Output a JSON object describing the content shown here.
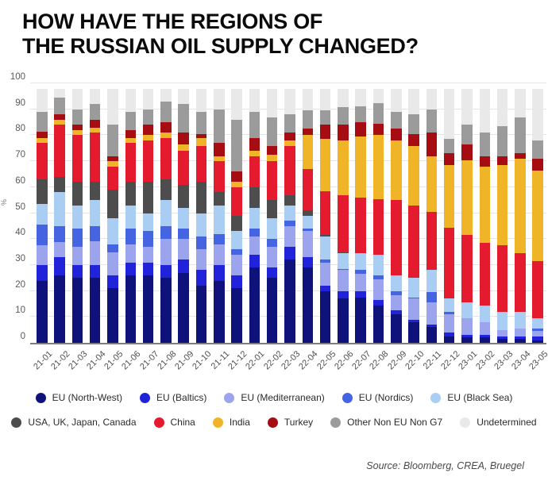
{
  "title": {
    "line1": "HOW HAVE THE REGIONS OF",
    "line2": "THE RUSSIAN OIL SUPPLY CHANGED?"
  },
  "source": "Source: Bloomberg, CREA, Bruegel",
  "chart_data": {
    "type": "bar",
    "stacked": true,
    "title": "HOW HAVE THE REGIONS OF THE RUSSIAN OIL SUPPLY CHANGED?",
    "xlabel": "",
    "ylabel": "%",
    "ylim": [
      0,
      100
    ],
    "yticks": [
      0,
      10,
      20,
      30,
      40,
      50,
      60,
      70,
      80,
      90,
      100
    ],
    "grid": true,
    "legend_position": "bottom",
    "categories": [
      "21-01",
      "21-02",
      "21-03",
      "21-04",
      "21-05",
      "21-06",
      "21-07",
      "21-08",
      "21-09",
      "21-10",
      "21-11",
      "21-12",
      "22-01",
      "22-02",
      "22-03",
      "22-04",
      "22-05",
      "22-06",
      "22-07",
      "22-08",
      "22-09",
      "22-10",
      "22-11",
      "22-12",
      "23-01",
      "23-02",
      "23-03",
      "23-04",
      "23-05"
    ],
    "series": [
      {
        "name": "EU (North-West)",
        "color": "#10127c",
        "values": [
          24,
          26,
          25,
          25,
          21,
          26,
          26,
          25,
          27,
          22,
          24,
          21,
          29,
          25,
          32,
          29,
          20,
          17,
          17.5,
          14.5,
          11,
          8,
          6,
          2.5,
          2,
          2,
          1.5,
          1.5,
          1
        ]
      },
      {
        "name": "EU (Baltics)",
        "color": "#2023d9",
        "values": [
          6,
          7,
          5,
          5,
          5,
          5,
          5,
          5,
          5,
          6,
          6,
          5,
          5,
          4,
          5,
          4,
          2,
          3,
          2.5,
          2,
          1.5,
          1,
          1,
          1.5,
          1,
          1,
          1,
          1,
          1.5
        ]
      },
      {
        "name": "EU (Mediterranean)",
        "color": "#9ca4ee",
        "values": [
          7.5,
          6,
          7,
          9,
          9,
          7,
          6,
          10,
          8,
          8,
          8,
          8,
          7,
          8,
          8,
          10,
          9,
          8,
          6.5,
          8,
          6,
          8,
          8.5,
          7,
          6.5,
          5,
          2.5,
          3,
          2
        ]
      },
      {
        "name": "EU (Nordics)",
        "color": "#4464e1",
        "values": [
          8,
          6,
          7,
          6,
          3,
          6,
          6,
          5,
          4,
          5,
          4,
          2,
          3,
          3,
          2,
          1,
          1,
          0.5,
          1.5,
          1.5,
          1.5,
          0.5,
          4,
          1,
          0,
          0,
          0,
          0,
          1
        ]
      },
      {
        "name": "EU (Black Sea)",
        "color": "#aacdf3",
        "values": [
          8,
          13,
          9,
          10,
          10,
          9,
          7,
          10,
          8,
          9,
          11,
          7,
          8,
          8,
          6,
          5,
          9,
          6,
          6.5,
          8,
          6,
          7.5,
          8.5,
          5,
          6,
          6.5,
          7,
          6.5,
          4
        ]
      },
      {
        "name": "USA, UK, Japan, Canada",
        "color": "#4d4d4d",
        "values": [
          9.5,
          6,
          9,
          7,
          11,
          9,
          12,
          8,
          9,
          12,
          5,
          6,
          8,
          7,
          4,
          2,
          0.5,
          0.5,
          0,
          0,
          0,
          0,
          0,
          0,
          0,
          0,
          0,
          0,
          0
        ]
      },
      {
        "name": "China",
        "color": "#e41b2e",
        "values": [
          14,
          20,
          18,
          19,
          9,
          15,
          16,
          16,
          13,
          14,
          12,
          11,
          12,
          15,
          19,
          16,
          17,
          22,
          21.5,
          21.5,
          29,
          28,
          22.5,
          27.5,
          26,
          24,
          25.5,
          22.5,
          22
        ]
      },
      {
        "name": "India",
        "color": "#f0b428",
        "values": [
          2,
          2,
          2,
          2,
          2,
          2,
          2,
          2,
          2.5,
          3,
          2,
          2,
          2,
          2.5,
          2,
          13,
          20,
          21,
          23.5,
          24.5,
          23,
          23,
          21.5,
          24,
          29,
          29.5,
          31,
          36.5,
          35
        ]
      },
      {
        "name": "Turkey",
        "color": "#a50d13",
        "values": [
          2.5,
          2,
          2,
          3,
          2,
          3,
          4,
          4,
          4.5,
          1.5,
          5,
          4,
          5,
          3.5,
          3,
          2.5,
          5.5,
          6,
          5.5,
          4.5,
          4.5,
          4.5,
          9,
          4.5,
          6,
          4,
          3.5,
          2,
          4.5
        ]
      },
      {
        "name": "Other Non EU Non G7",
        "color": "#9b9b9b",
        "values": [
          7.5,
          6.5,
          6,
          6,
          12,
          7,
          6,
          8,
          11,
          8.5,
          13,
          20,
          10,
          11,
          7,
          7,
          5.5,
          7,
          6,
          8,
          6.5,
          7.5,
          9,
          5.5,
          7.5,
          9,
          11.5,
          14,
          7
        ]
      },
      {
        "name": "Undetermined",
        "color": "#e9e9e9",
        "values": [
          9,
          3.5,
          8,
          6,
          14,
          9,
          8,
          5,
          6,
          9,
          8,
          12,
          9,
          11,
          10,
          8.5,
          8.5,
          7,
          7,
          5.5,
          9,
          10,
          8,
          19.5,
          14,
          17,
          14.5,
          11,
          20
        ]
      }
    ]
  }
}
